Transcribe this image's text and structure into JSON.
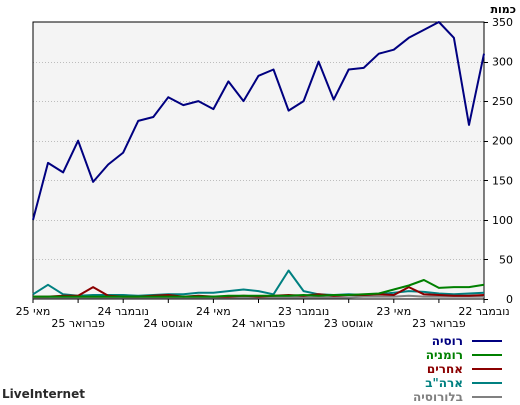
{
  "chart_data": {
    "type": "line",
    "ylabel": "כמות",
    "ylim": [
      0,
      350
    ],
    "yticks": [
      0,
      50,
      100,
      150,
      200,
      250,
      300,
      350
    ],
    "grid": true,
    "legend_position": "bottom-right",
    "x_axis_direction": "right-to-left",
    "x_tick_labels": [
      "נובמבר 22",
      "פברואר 23",
      "מאי 23",
      "אוגוסט 23",
      "נובמבר 23",
      "פברואר 24",
      "מאי 24",
      "אוגוסט 24",
      "נובמבר 24",
      "פברואר 25",
      "מאי 25"
    ],
    "series": [
      {
        "name": "רוסיה",
        "color": "#000080",
        "values": [
          310,
          220,
          330,
          350,
          340,
          330,
          315,
          310,
          292,
          290,
          252,
          300,
          250,
          238,
          290,
          282,
          250,
          275,
          240,
          250,
          245,
          255,
          230,
          225,
          185,
          170,
          148,
          200,
          160,
          172,
          100
        ]
      },
      {
        "name": "רומניה",
        "color": "#008000",
        "values": [
          18,
          15,
          15,
          14,
          24,
          17,
          12,
          7,
          6,
          5,
          5,
          4,
          5,
          4,
          4,
          4,
          4,
          4,
          3,
          3,
          3,
          3,
          3,
          3,
          3,
          3,
          3,
          3,
          3,
          3,
          3
        ]
      },
      {
        "name": "אחרים",
        "color": "#8b0000",
        "values": [
          5,
          4,
          4,
          5,
          6,
          15,
          5,
          6,
          5,
          5,
          4,
          6,
          4,
          5,
          4,
          3,
          4,
          3,
          3,
          4,
          3,
          5,
          4,
          3,
          3,
          4,
          15,
          4,
          4,
          3,
          3
        ]
      },
      {
        "name": "ארה\"ב",
        "color": "#008080",
        "values": [
          8,
          7,
          6,
          7,
          9,
          10,
          8,
          6,
          5,
          6,
          5,
          6,
          10,
          36,
          6,
          10,
          12,
          10,
          8,
          8,
          6,
          6,
          5,
          4,
          5,
          5,
          5,
          4,
          6,
          18,
          6
        ]
      },
      {
        "name": "בלורוסיה",
        "color": "#808080",
        "values": [
          3,
          3,
          3,
          3,
          3,
          4,
          3,
          3,
          3,
          2,
          2,
          2,
          2,
          2,
          2,
          2,
          2,
          2,
          2,
          2,
          2,
          2,
          2,
          2,
          2,
          2,
          2,
          2,
          2,
          2,
          2
        ]
      }
    ]
  },
  "footer": {
    "brand": "LiveInternet"
  }
}
